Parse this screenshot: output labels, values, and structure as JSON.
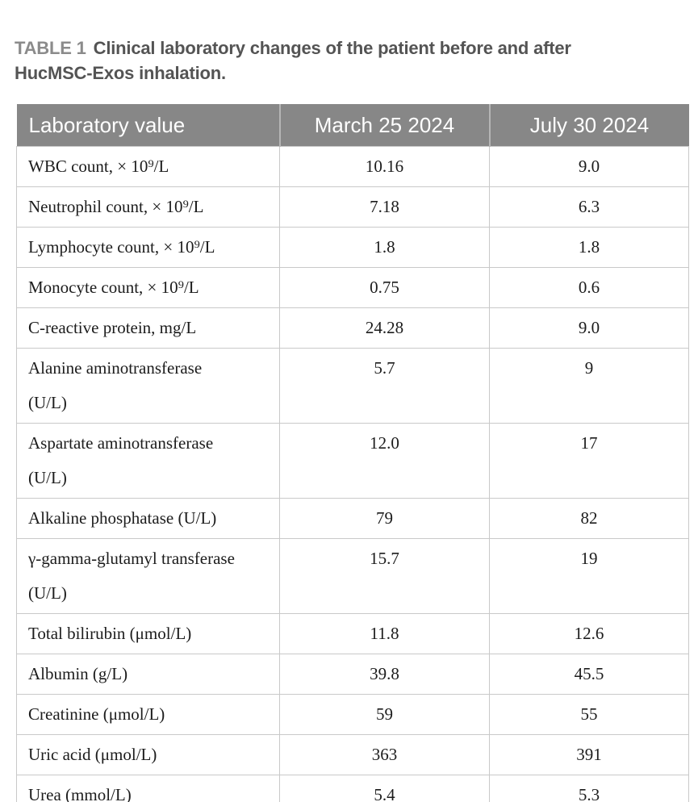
{
  "caption": {
    "label": "TABLE 1",
    "text": "Clinical laboratory changes of the patient before and after\nHucMSC-Exos inhalation."
  },
  "table": {
    "columns": [
      "Laboratory value",
      "March 25 2024",
      "July 30 2024"
    ],
    "rows": [
      {
        "label": "WBC count, × 10⁹/L",
        "values": [
          "10.16",
          "9.0"
        ]
      },
      {
        "label": "Neutrophil count, × 10⁹/L",
        "values": [
          "7.18",
          "6.3"
        ]
      },
      {
        "label": "Lymphocyte count, × 10⁹/L",
        "values": [
          "1.8",
          "1.8"
        ]
      },
      {
        "label": "Monocyte count, × 10⁹/L",
        "values": [
          "0.75",
          "0.6"
        ]
      },
      {
        "label": "C-reactive protein, mg/L",
        "values": [
          "24.28",
          "9.0"
        ]
      },
      {
        "label": "Alanine aminotransferase\n(U/L)",
        "values": [
          "5.7",
          "9"
        ]
      },
      {
        "label": "Aspartate aminotransferase\n(U/L)",
        "values": [
          "12.0",
          "17"
        ]
      },
      {
        "label": "Alkaline phosphatase (U/L)",
        "values": [
          "79",
          "82"
        ]
      },
      {
        "label": "γ-gamma-glutamyl transferase\n(U/L)",
        "values": [
          "15.7",
          "19"
        ]
      },
      {
        "label": "Total bilirubin (μmol/L)",
        "values": [
          "11.8",
          "12.6"
        ]
      },
      {
        "label": "Albumin (g/L)",
        "values": [
          "39.8",
          "45.5"
        ]
      },
      {
        "label": "Creatinine (μmol/L)",
        "values": [
          "59",
          "55"
        ]
      },
      {
        "label": "Uric acid (μmol/L)",
        "values": [
          "363",
          "391"
        ]
      },
      {
        "label": "Urea (mmol/L)",
        "values": [
          "5.4",
          "5.3"
        ]
      }
    ]
  },
  "colors": {
    "header_bg": "#878787",
    "header_text": "#ffffff",
    "header_divider": "#b5b5b5",
    "cell_border": "#c9c9c9",
    "bottom_border": "#c4c4c4",
    "caption_label": "#8b8b8b",
    "caption_text": "#545454",
    "body_text": "#1c1c1c"
  }
}
